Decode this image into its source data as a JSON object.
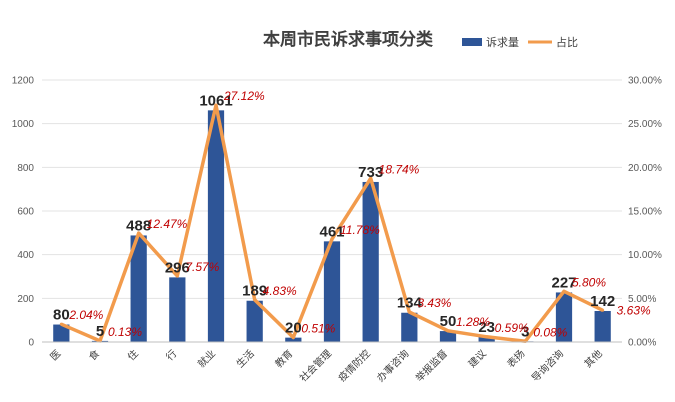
{
  "chart_data": {
    "type": "bar",
    "title": "本周市民诉求事项分类",
    "categories": [
      "医",
      "食",
      "住",
      "行",
      "就业",
      "生活",
      "教育",
      "社会管理",
      "疫情防控",
      "办事咨询",
      "举报监督",
      "建议",
      "表扬",
      "导询咨询",
      "其他"
    ],
    "series": [
      {
        "name": "诉求量",
        "type": "bar",
        "axis": "left",
        "color": "#2e5597",
        "values": [
          80,
          5,
          488,
          296,
          1061,
          189,
          20,
          461,
          733,
          134,
          50,
          23,
          3,
          227,
          142
        ],
        "labels": [
          "80",
          "5",
          "488",
          "296",
          "1061",
          "189",
          "20",
          "461",
          "733",
          "134",
          "50",
          "23",
          "3",
          "227",
          "142"
        ]
      },
      {
        "name": "占比",
        "type": "line",
        "axis": "right",
        "color": "#f29b4c",
        "values": [
          2.04,
          0.13,
          12.47,
          7.57,
          27.12,
          4.83,
          0.51,
          11.78,
          18.74,
          3.43,
          1.28,
          0.59,
          0.08,
          5.8,
          3.63
        ],
        "labels": [
          "2.04%",
          "0.13%",
          "12.47%",
          "7.57%",
          "27.12%",
          "4.83%",
          "0.51%",
          "11.78%",
          "18.74%",
          "3.43%",
          "1.28%",
          "0.59%",
          "0.08%",
          "5.80%",
          "3.63%"
        ]
      }
    ],
    "y_left": {
      "min": 0,
      "max": 1200,
      "ticks": [
        "0",
        "200",
        "400",
        "600",
        "800",
        "1000",
        "1200"
      ]
    },
    "y_right": {
      "min": 0,
      "max": 30,
      "ticks": [
        "0.00%",
        "5.00%",
        "10.00%",
        "15.00%",
        "20.00%",
        "25.00%",
        "30.00%"
      ]
    },
    "grid": true,
    "legend": "top-right",
    "xlabel": "",
    "ylabel": ""
  }
}
